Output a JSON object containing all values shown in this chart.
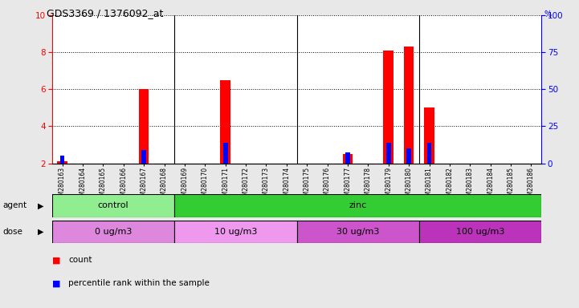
{
  "title": "GDS3369 / 1376092_at",
  "samples": [
    "GSM280163",
    "GSM280164",
    "GSM280165",
    "GSM280166",
    "GSM280167",
    "GSM280168",
    "GSM280169",
    "GSM280170",
    "GSM280171",
    "GSM280172",
    "GSM280173",
    "GSM280174",
    "GSM280175",
    "GSM280176",
    "GSM280177",
    "GSM280178",
    "GSM280179",
    "GSM280180",
    "GSM280181",
    "GSM280182",
    "GSM280183",
    "GSM280184",
    "GSM280185",
    "GSM280186"
  ],
  "count_values": [
    2.1,
    2.0,
    2.0,
    2.0,
    6.0,
    2.0,
    2.0,
    2.0,
    6.5,
    2.0,
    2.0,
    2.0,
    2.0,
    2.0,
    2.5,
    2.0,
    8.1,
    8.3,
    5.0,
    2.0,
    2.0,
    2.0,
    2.0,
    2.0
  ],
  "percentile_values": [
    2.4,
    2.0,
    2.0,
    2.0,
    2.7,
    2.0,
    2.0,
    2.0,
    3.1,
    2.0,
    2.0,
    2.0,
    2.0,
    2.0,
    2.6,
    2.0,
    3.1,
    2.8,
    3.1,
    2.0,
    2.0,
    2.0,
    2.0,
    2.0
  ],
  "ylim_left": [
    2,
    10
  ],
  "ylim_right": [
    0,
    100
  ],
  "yticks_left": [
    2,
    4,
    6,
    8,
    10
  ],
  "yticks_right": [
    0,
    25,
    50,
    75,
    100
  ],
  "bar_color_red": "#ff0000",
  "bar_color_blue": "#0000ff",
  "agent_groups": [
    {
      "label": "control",
      "start": 0,
      "end": 6,
      "color": "#90ee90"
    },
    {
      "label": "zinc",
      "start": 6,
      "end": 24,
      "color": "#33cc33"
    }
  ],
  "dose_groups": [
    {
      "label": "0 ug/m3",
      "start": 0,
      "end": 6,
      "color": "#dd88dd"
    },
    {
      "label": "10 ug/m3",
      "start": 6,
      "end": 12,
      "color": "#ee99ee"
    },
    {
      "label": "30 ug/m3",
      "start": 12,
      "end": 18,
      "color": "#cc55cc"
    },
    {
      "label": "100 ug/m3",
      "start": 18,
      "end": 24,
      "color": "#cc44cc"
    }
  ],
  "bg_color": "#e8e8e8",
  "plot_bg": "#ffffff",
  "bar_width": 0.5,
  "group_boundaries": [
    6,
    12,
    18
  ],
  "n_samples": 24
}
